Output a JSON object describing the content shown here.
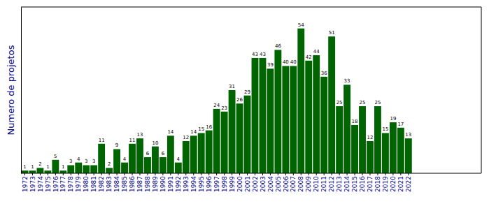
{
  "chart_data": {
    "type": "bar",
    "y_label": "Numero de projetos",
    "categories": [
      "1972",
      "1973",
      "1974",
      "1975",
      "1976",
      "1977",
      "1978",
      "1979",
      "1980",
      "1981",
      "1982",
      "1983",
      "1984",
      "1985",
      "1986",
      "1987",
      "1988",
      "1989",
      "1990",
      "1991",
      "1992",
      "1993",
      "1994",
      "1995",
      "1996",
      "1997",
      "1998",
      "1999",
      "2000",
      "2001",
      "2002",
      "2003",
      "2004",
      "2005",
      "2006",
      "2007",
      "2008",
      "2009",
      "2010",
      "2011",
      "2012",
      "2013",
      "2014",
      "2015",
      "2016",
      "2017",
      "2018",
      "2019",
      "2020",
      "2021",
      "2022"
    ],
    "values": [
      1,
      1,
      2,
      1,
      5,
      1,
      3,
      4,
      3,
      3,
      11,
      2,
      9,
      4,
      11,
      13,
      6,
      10,
      6,
      14,
      4,
      12,
      14,
      15,
      16,
      24,
      23,
      31,
      26,
      29,
      43,
      43,
      39,
      46,
      40,
      40,
      54,
      42,
      44,
      36,
      51,
      25,
      33,
      18,
      25,
      12,
      25,
      15,
      19,
      17,
      13
    ],
    "color": "#006400",
    "ylim": [
      0,
      62
    ],
    "data_labels": true,
    "tick_labels": "x"
  }
}
